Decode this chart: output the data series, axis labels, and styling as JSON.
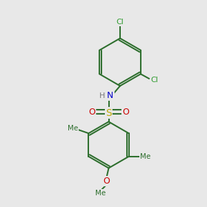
{
  "background_color": "#e8e8e8",
  "bond_color": "#2d6e2d",
  "bond_width": 1.5,
  "atom_colors": {
    "C": "#2d6e2d",
    "H": "#777777",
    "N": "#0000cc",
    "S": "#bbaa00",
    "O": "#cc0000",
    "Cl": "#2d9a2d"
  },
  "figsize": [
    3.0,
    3.0
  ],
  "dpi": 100,
  "xlim": [
    0,
    10
  ],
  "ylim": [
    0,
    10
  ]
}
